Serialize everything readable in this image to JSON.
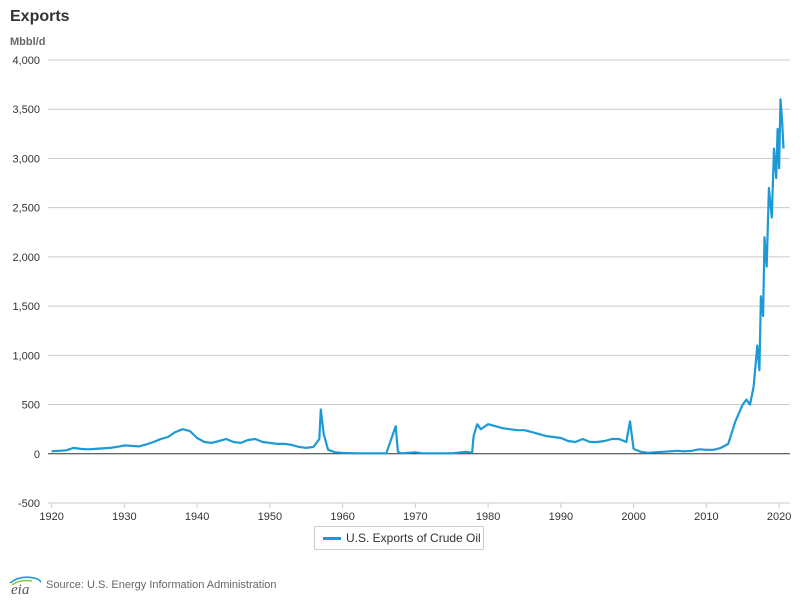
{
  "header": {
    "title": "Exports",
    "units": "Mbbl/d"
  },
  "footer": {
    "logo_text": "eia",
    "source": "Source: U.S. Energy Information Administration"
  },
  "colors": {
    "series": "#1d9ad6",
    "grid": "#cccccc",
    "zero": "#333333"
  },
  "chart_data": {
    "type": "line",
    "title": "Exports",
    "ylabel": "Mbbl/d",
    "xlabel": "",
    "xlim": [
      1919.5,
      2021.5
    ],
    "ylim": [
      -500,
      4000
    ],
    "yticks": [
      -500,
      0,
      500,
      1000,
      1500,
      2000,
      2500,
      3000,
      3500,
      4000
    ],
    "ytick_labels": [
      "-500",
      "0",
      "500",
      "1,000",
      "1,500",
      "2,000",
      "2,500",
      "3,000",
      "3,500",
      "4,000"
    ],
    "xticks": [
      1920,
      1930,
      1940,
      1950,
      1960,
      1970,
      1980,
      1990,
      2000,
      2010,
      2020
    ],
    "xtick_labels": [
      "1920",
      "1930",
      "1940",
      "1950",
      "1960",
      "1970",
      "1980",
      "1990",
      "2000",
      "2010",
      "2020"
    ],
    "grid": "horizontal",
    "legend_position": "bottom-center",
    "series": [
      {
        "name": "U.S. Exports of Crude Oil",
        "x": [
          1920,
          1921,
          1922,
          1923,
          1924,
          1925,
          1926,
          1927,
          1928,
          1929,
          1930,
          1931,
          1932,
          1933,
          1934,
          1935,
          1936,
          1937,
          1938,
          1939,
          1940,
          1941,
          1942,
          1943,
          1944,
          1945,
          1946,
          1947,
          1948,
          1949,
          1950,
          1951,
          1952,
          1953,
          1954,
          1955,
          1956,
          1956.8,
          1957,
          1957.4,
          1958,
          1959,
          1960,
          1962,
          1964,
          1966,
          1967.3,
          1967.6,
          1968,
          1970,
          1971,
          1972,
          1975,
          1977,
          1977.8,
          1978,
          1978.5,
          1979,
          1980,
          1981,
          1982,
          1983,
          1984,
          1985,
          1986,
          1987,
          1988,
          1989,
          1990,
          1991,
          1992,
          1993,
          1994,
          1995,
          1996,
          1997,
          1998,
          1999,
          1999.5,
          2000,
          2001,
          2002,
          2003,
          2004,
          2005,
          2006,
          2007,
          2008,
          2009,
          2010,
          2011,
          2012,
          2013,
          2014,
          2015,
          2015.5,
          2016,
          2016.5,
          2017,
          2017.3,
          2017.5,
          2017.8,
          2018,
          2018.3,
          2018.6,
          2019,
          2019.3,
          2019.6,
          2019.8,
          2020,
          2020.2,
          2020.4,
          2020.6
        ],
        "values": [
          25,
          30,
          35,
          60,
          50,
          45,
          50,
          55,
          60,
          70,
          85,
          80,
          75,
          95,
          120,
          150,
          170,
          220,
          250,
          230,
          160,
          120,
          110,
          130,
          150,
          120,
          110,
          140,
          150,
          120,
          110,
          100,
          100,
          90,
          70,
          60,
          70,
          150,
          450,
          200,
          40,
          15,
          10,
          5,
          5,
          5,
          280,
          20,
          5,
          15,
          5,
          5,
          5,
          20,
          10,
          180,
          300,
          250,
          300,
          280,
          260,
          250,
          240,
          240,
          220,
          200,
          180,
          170,
          160,
          130,
          120,
          150,
          120,
          120,
          130,
          150,
          150,
          120,
          330,
          50,
          20,
          10,
          15,
          20,
          25,
          30,
          25,
          30,
          45,
          40,
          40,
          60,
          100,
          330,
          500,
          550,
          500,
          680,
          1100,
          850,
          1600,
          1400,
          2200,
          1900,
          2700,
          2400,
          3100,
          2800,
          3300,
          2900,
          3600,
          3400,
          3100
        ]
      }
    ]
  }
}
